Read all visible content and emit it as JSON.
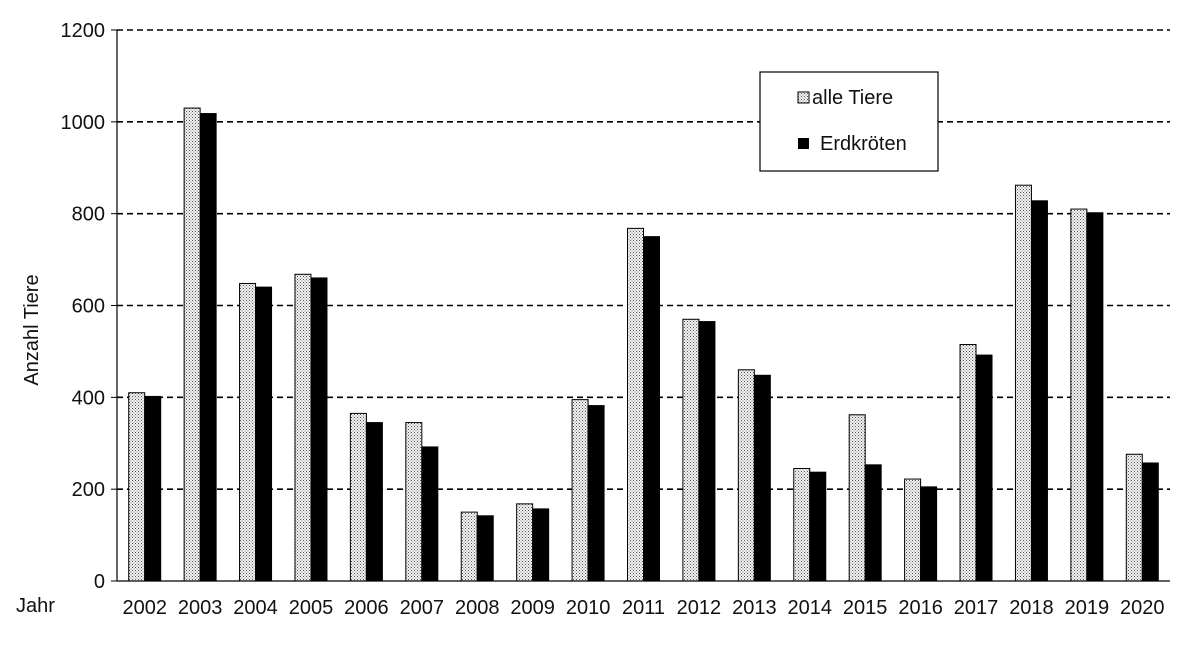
{
  "chart_data": {
    "type": "bar",
    "ylabel": "Anzahl Tiere",
    "xlabel": "Jahr",
    "ylim": [
      0,
      1200
    ],
    "yticks": [
      0,
      200,
      400,
      600,
      800,
      1000,
      1200
    ],
    "grid": true,
    "legend_position": "top-right",
    "categories": [
      "2002",
      "2003",
      "2004",
      "2005",
      "2006",
      "2007",
      "2008",
      "2009",
      "2010",
      "2011",
      "2012",
      "2013",
      "2014",
      "2015",
      "2016",
      "2017",
      "2018",
      "2019",
      "2020"
    ],
    "series": [
      {
        "name": "alle Tiere",
        "style": "dotted-light",
        "values": [
          410,
          1030,
          648,
          668,
          365,
          345,
          150,
          168,
          395,
          768,
          570,
          460,
          245,
          362,
          222,
          515,
          862,
          810,
          276
        ]
      },
      {
        "name": "Erdkröten",
        "style": "solid-black",
        "values": [
          402,
          1018,
          640,
          660,
          345,
          292,
          142,
          157,
          382,
          750,
          565,
          448,
          237,
          253,
          205,
          492,
          828,
          802,
          257
        ]
      }
    ]
  },
  "colors": {
    "bar_dark": "#000000",
    "bar_light_bg": "#f0f0f0",
    "bar_light_dots": "#555555",
    "grid": "#000000"
  }
}
